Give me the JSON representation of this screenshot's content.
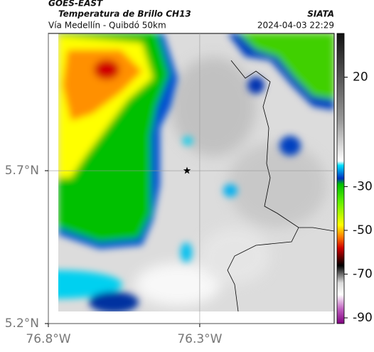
{
  "header": {
    "satellite": "GOES-EAST",
    "title": "Temperatura de Brillo CH13",
    "subtitle": "Vía Medellín - Quibdó 50km",
    "source": "SIATA",
    "datetime": "2024-04-03 22:29"
  },
  "map": {
    "xlim": [
      -76.8,
      -75.856
    ],
    "ylim": [
      5.2,
      6.149
    ],
    "xticks": [
      {
        "value": -76.8,
        "label": "76.8°W"
      },
      {
        "value": -76.3,
        "label": "76.3°W"
      }
    ],
    "yticks": [
      {
        "value": 5.2,
        "label": "5.2°N"
      },
      {
        "value": 5.7,
        "label": "5.7°N"
      }
    ],
    "marker": {
      "lon": -76.342,
      "lat": 5.7
    }
  },
  "colorbar": {
    "lim": [
      -92.6,
      40
    ],
    "ticks": [
      20,
      -30,
      -50,
      -70,
      -90
    ]
  }
}
